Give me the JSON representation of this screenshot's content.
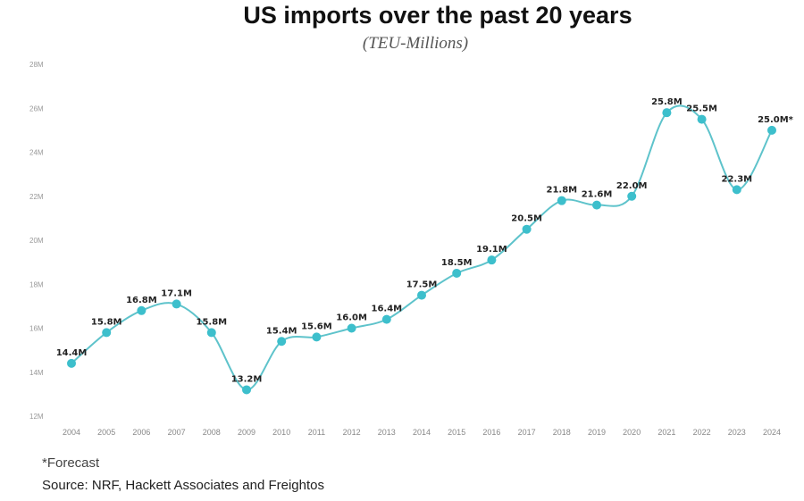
{
  "chart_data": {
    "type": "line",
    "title": "US imports over the past 20 years",
    "subtitle": "(TEU-Millions)",
    "categories": [
      "2004",
      "2005",
      "2006",
      "2007",
      "2008",
      "2009",
      "2010",
      "2011",
      "2012",
      "2013",
      "2014",
      "2015",
      "2016",
      "2017",
      "2018",
      "2019",
      "2020",
      "2021",
      "2022",
      "2023",
      "2024"
    ],
    "values": [
      14.4,
      15.8,
      16.8,
      17.1,
      15.8,
      13.2,
      15.4,
      15.6,
      16.0,
      16.4,
      17.5,
      18.5,
      19.1,
      20.5,
      21.8,
      21.6,
      22.0,
      25.8,
      25.5,
      22.3,
      25.0
    ],
    "data_labels": [
      "14.4M",
      "15.8M",
      "16.8M",
      "17.1M",
      "15.8M",
      "13.2M",
      "15.4M",
      "15.6M",
      "16.0M",
      "16.4M",
      "17.5M",
      "18.5M",
      "19.1M",
      "20.5M",
      "21.8M",
      "21.6M",
      "22.0M",
      "25.8M",
      "25.5M",
      "22.3M",
      "25.0M*"
    ],
    "y_ticks": [
      "12M",
      "14M",
      "16M",
      "18M",
      "20M",
      "22M",
      "24M",
      "26M",
      "28M"
    ],
    "ylim": [
      12,
      28
    ],
    "grid": false,
    "colors": {
      "line": "#5ec3cb",
      "marker": "#3dbfcc"
    }
  },
  "footnote": "*Forecast",
  "source": "Source: NRF, Hackett Associates and Freightos"
}
